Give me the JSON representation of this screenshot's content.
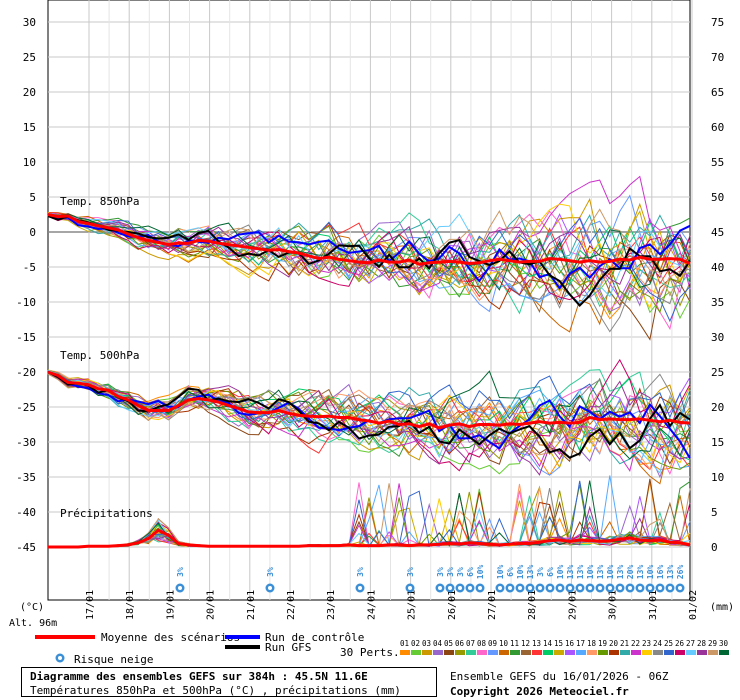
{
  "chart_data": {
    "type": "line",
    "title": "Diagramme des ensembles GEFS sur 384h : 45.5N 11.6E",
    "subtitle": "Températures 850hPa et 500hPa (°C) , précipitations (mm)",
    "left_axis": {
      "label": "(°C)",
      "ticks": [
        "30",
        "25",
        "20",
        "15",
        "10",
        "5",
        "0",
        "-5",
        "-10",
        "-15",
        "-20",
        "-25",
        "-30",
        "-35",
        "-40",
        "-45"
      ]
    },
    "right_axis": {
      "label": "(mm)",
      "ticks": [
        "75",
        "70",
        "65",
        "60",
        "55",
        "50",
        "45",
        "40",
        "35",
        "30",
        "25",
        "20",
        "15",
        "10",
        "5",
        "0"
      ]
    },
    "x_ticks": [
      "17/01",
      "18/01",
      "19/01",
      "20/01",
      "21/01",
      "22/01",
      "23/01",
      "24/01",
      "25/01",
      "26/01",
      "27/01",
      "28/01",
      "29/01",
      "30/01",
      "31/01",
      "01/02"
    ],
    "altitude": "Alt. 96m",
    "panel_labels": {
      "t850": "Temp. 850hPa",
      "t500": "Temp. 500hPa",
      "precip": "Précipitations"
    },
    "mean_t850": [
      2.5,
      2.2,
      2.3,
      1.5,
      1.2,
      0.9,
      0.6,
      0.3,
      -0.3,
      -0.8,
      -1.2,
      -1.5,
      -1.8,
      -1.6,
      -1.6,
      -1.2,
      -1.3,
      -1.6,
      -1.8,
      -2.0,
      -2.2,
      -2.4,
      -2.6,
      -2.5,
      -2.8,
      -3.0,
      -3.4,
      -3.8,
      -3.6,
      -3.9,
      -4.1,
      -4.3,
      -4.4,
      -4.0,
      -4.3,
      -4.3,
      -4.0,
      -4.6,
      -4.4,
      -4.3,
      -4.2,
      -4.3,
      -4.5,
      -4.4,
      -4.1,
      -3.9,
      -4.1,
      -4.3,
      -4.2,
      -4.2,
      -3.8,
      -3.9,
      -4.1,
      -4.3,
      -4.1,
      -4.3,
      -4.2,
      -3.9,
      -4.0,
      -3.6,
      -3.9,
      -3.9,
      -3.8,
      -3.9,
      -4.5
    ],
    "mean_t500": [
      -20.0,
      -20.5,
      -21.5,
      -21.6,
      -21.8,
      -22.4,
      -22.6,
      -23.5,
      -24.0,
      -24.8,
      -25.5,
      -25.5,
      -25.5,
      -24.8,
      -24.0,
      -23.8,
      -24.0,
      -24.3,
      -24.8,
      -25.2,
      -25.7,
      -25.8,
      -25.8,
      -25.5,
      -25.9,
      -26.2,
      -26.3,
      -26.4,
      -26.3,
      -26.5,
      -26.5,
      -26.8,
      -27.0,
      -27.3,
      -27.0,
      -27.5,
      -27.4,
      -27.8,
      -27.4,
      -28.0,
      -27.6,
      -27.4,
      -27.8,
      -27.5,
      -27.5,
      -27.6,
      -27.4,
      -27.5,
      -27.3,
      -27.1,
      -27.3,
      -27.2,
      -27.3,
      -27.2,
      -26.5,
      -26.8,
      -26.7,
      -26.8,
      -26.8,
      -26.7,
      -26.9,
      -27.1,
      -26.9,
      -27.2,
      -27.3
    ],
    "mean_precip": [
      0,
      0,
      0,
      0,
      0.1,
      0.1,
      0.1,
      0.2,
      0.3,
      0.6,
      1.2,
      2.4,
      1.7,
      0.5,
      0.3,
      0.2,
      0.1,
      0.1,
      0.1,
      0.1,
      0.1,
      0.1,
      0.1,
      0.1,
      0.1,
      0.1,
      0.2,
      0.2,
      0.2,
      0.2,
      0.3,
      0.2,
      0.2,
      0.2,
      0.3,
      0.3,
      0.2,
      0.3,
      0.3,
      0.4,
      0.5,
      0.4,
      0.6,
      0.5,
      0.4,
      0.3,
      0.4,
      0.5,
      0.5,
      0.7,
      0.9,
      1.0,
      0.8,
      1.0,
      0.9,
      0.8,
      0.9,
      1.1,
      1.3,
      1.0,
      0.9,
      1.0,
      0.7,
      0.6,
      0.3
    ],
    "legend": {
      "mean": "Moyenne des scénarios",
      "control": "Run de contrôle",
      "gfs": "Run GFS",
      "snow": "Risque neige",
      "perts_label": "30 Perts.",
      "pert_numbers": [
        "01",
        "02",
        "03",
        "04",
        "05",
        "06",
        "07",
        "08",
        "09",
        "10",
        "11",
        "12",
        "13",
        "14",
        "15",
        "16",
        "17",
        "18",
        "19",
        "20",
        "21",
        "22",
        "23",
        "24",
        "25",
        "26",
        "27",
        "28",
        "29",
        "30"
      ]
    },
    "snow_risk": [
      "3%",
      "3%",
      "3%",
      "3%",
      "3%",
      "3%",
      "3%",
      "6%",
      "10%",
      "10%",
      "6%",
      "10%",
      "13%",
      "3%",
      "6%",
      "10%",
      "13%",
      "13%",
      "10%",
      "13%",
      "10%",
      "13%",
      "20%",
      "13%",
      "10%",
      "16%",
      "13%",
      "26%"
    ],
    "colors": {
      "mean": "#ff0000",
      "control": "#0000ff",
      "gfs": "#000000",
      "grid": "#c8c8c8",
      "snow": "#3b8fd6"
    }
  },
  "footer": {
    "run_info": "Ensemble GEFS du 16/01/2026 - 06Z",
    "copyright": "Copyright 2026 Meteociel.fr"
  }
}
